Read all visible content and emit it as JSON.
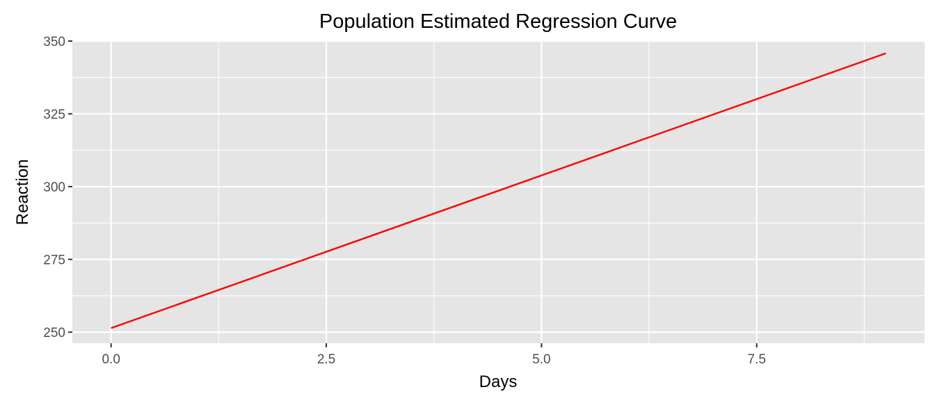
{
  "chart_data": {
    "type": "line",
    "title": "Population Estimated Regression Curve",
    "xlabel": "Days",
    "ylabel": "Reaction",
    "xlim": [
      -0.45,
      9.45
    ],
    "ylim": [
      246.2,
      350
    ],
    "x_ticks": [
      0.0,
      2.5,
      5.0,
      7.5
    ],
    "x_tick_labels": [
      "0.0",
      "2.5",
      "5.0",
      "7.5"
    ],
    "x_minor": [
      1.25,
      3.75,
      6.25,
      8.75
    ],
    "y_ticks": [
      250,
      275,
      300,
      325,
      350
    ],
    "y_tick_labels": [
      "250",
      "275",
      "300",
      "325",
      "350"
    ],
    "y_minor": [
      262.5,
      287.5,
      312.5,
      337.5
    ],
    "grid": true,
    "panel_background": "#e5e5e5",
    "series": [
      {
        "color": "#ff0000",
        "x": [
          0,
          9
        ],
        "y": [
          251.4,
          345.8
        ]
      }
    ]
  }
}
